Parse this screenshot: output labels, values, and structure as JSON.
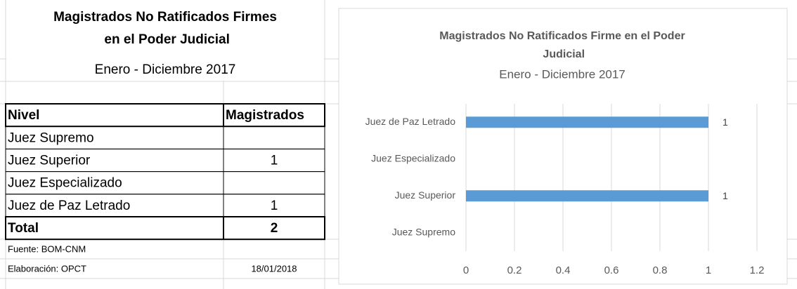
{
  "table": {
    "title": "Magistrados No Ratificados Firmes en el Poder Judicial",
    "subtitle": "Enero - Diciembre  2017",
    "header": [
      "Nivel",
      "Magistrados"
    ],
    "rows": [
      [
        "Juez Supremo",
        null
      ],
      [
        "Juez Superior",
        1
      ],
      [
        "Juez Especializado",
        null
      ],
      [
        "Juez de Paz Letrado",
        1
      ]
    ],
    "total": [
      "Total",
      2
    ],
    "source": "Fuente: BOM-CNM",
    "prepared": "Elaboración: OPCT",
    "date": "18/01/2018"
  },
  "chart_data": {
    "type": "bar",
    "orientation": "horizontal",
    "title": "Magistrados  No Ratificados  Firme en el Poder Judicial",
    "subtitle": "Enero - Diciembre 2017",
    "categories": [
      "Juez Supremo",
      "Juez Superior",
      "Juez Especializado",
      "Juez de Paz Letrado"
    ],
    "values": [
      null,
      1,
      null,
      1
    ],
    "color": "#5b9bd5",
    "xlim": [
      0,
      1.2
    ],
    "xticks": [
      0,
      0.2,
      0.4,
      0.6,
      0.8,
      1,
      1.2
    ],
    "grid": true
  }
}
